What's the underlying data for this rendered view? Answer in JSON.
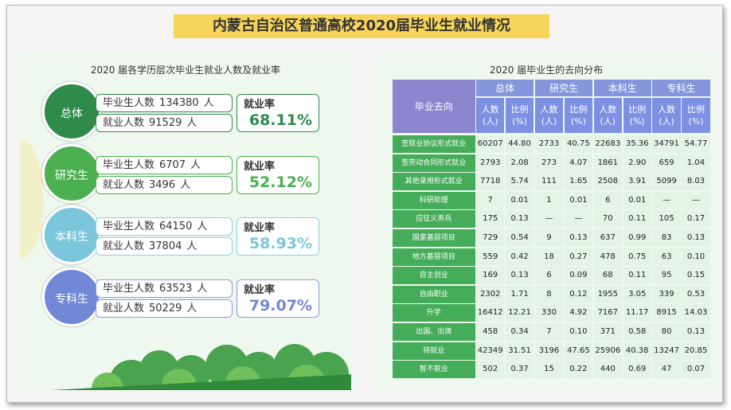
{
  "header": {
    "title": "内蒙古自治区普通高校2020届毕业生就业情况"
  },
  "left": {
    "title": "2020 届各学历层次毕业生就业人数及就业率",
    "labels": {
      "graduates": "毕业生人数",
      "employed": "就业人数",
      "unit": "人",
      "rate": "就业率"
    },
    "groups": [
      {
        "name": "总体",
        "graduates": 134380,
        "employed": 91529,
        "rate": "68.11%"
      },
      {
        "name": "研究生",
        "graduates": 6707,
        "employed": 3496,
        "rate": "52.12%"
      },
      {
        "name": "本科生",
        "graduates": 64150,
        "employed": 37804,
        "rate": "58.93%"
      },
      {
        "name": "专科生",
        "graduates": 63523,
        "employed": 50229,
        "rate": "79.07%"
      }
    ]
  },
  "table": {
    "title": "2020 届毕业生的去向分布",
    "corner": "毕业去向",
    "groups": [
      "总体",
      "研究生",
      "本科生",
      "专科生"
    ],
    "sub_headers": [
      [
        "人数",
        "(人)"
      ],
      [
        "比例",
        "(%)"
      ]
    ],
    "rows": [
      [
        "签就业协议形式就业",
        "60207",
        "44.80",
        "2733",
        "40.75",
        "22683",
        "35.36",
        "34791",
        "54.77"
      ],
      [
        "签劳动合同形式就业",
        "2793",
        "2.08",
        "273",
        "4.07",
        "1861",
        "2.90",
        "659",
        "1.04"
      ],
      [
        "其他录用形式就业",
        "7718",
        "5.74",
        "111",
        "1.65",
        "2508",
        "3.91",
        "5099",
        "8.03"
      ],
      [
        "科研助理",
        "7",
        "0.01",
        "1",
        "0.01",
        "6",
        "0.01",
        "—",
        "—"
      ],
      [
        "应征义务兵",
        "175",
        "0.13",
        "—",
        "—",
        "70",
        "0.11",
        "105",
        "0.17"
      ],
      [
        "国家基层项目",
        "729",
        "0.54",
        "9",
        "0.13",
        "637",
        "0.99",
        "83",
        "0.13"
      ],
      [
        "地方基层项目",
        "559",
        "0.42",
        "18",
        "0.27",
        "478",
        "0.75",
        "63",
        "0.10"
      ],
      [
        "自主创业",
        "169",
        "0.13",
        "6",
        "0.09",
        "68",
        "0.11",
        "95",
        "0.15"
      ],
      [
        "自由职业",
        "2302",
        "1.71",
        "8",
        "0.12",
        "1955",
        "3.05",
        "339",
        "0.53"
      ],
      [
        "升学",
        "16412",
        "12.21",
        "330",
        "4.92",
        "7167",
        "11.17",
        "8915",
        "14.03"
      ],
      [
        "出国、出境",
        "458",
        "0.34",
        "7",
        "0.10",
        "371",
        "0.58",
        "80",
        "0.13"
      ],
      [
        "待就业",
        "42349",
        "31.51",
        "3196",
        "47.65",
        "25906",
        "40.38",
        "13247",
        "20.85"
      ],
      [
        "暂不就业",
        "502",
        "0.37",
        "15",
        "0.22",
        "440",
        "0.69",
        "47",
        "0.07"
      ]
    ]
  }
}
